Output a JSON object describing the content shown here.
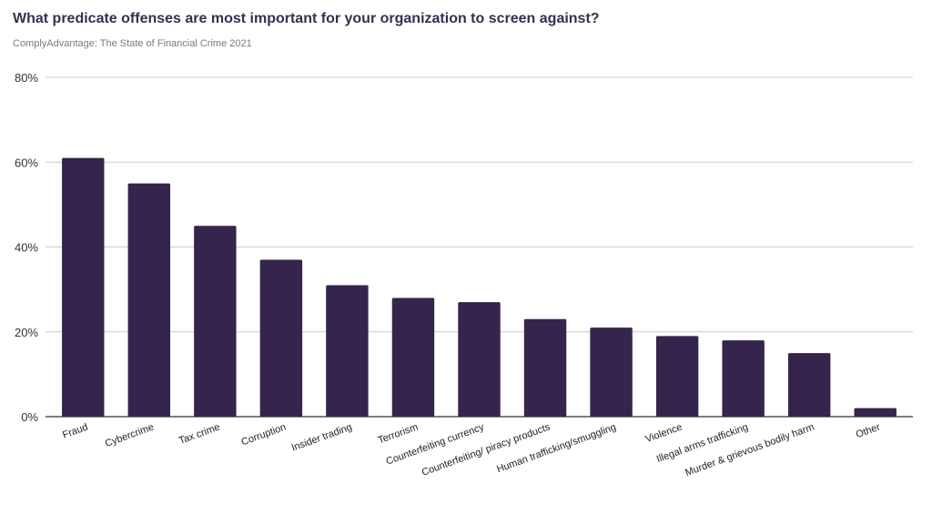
{
  "chart_data": {
    "type": "bar",
    "title": "What predicate offenses are most important for your organization to screen against?",
    "subtitle": "ComplyAdvantage: The State of Financial Crime 2021",
    "categories": [
      "Fraud",
      "Cybercrime",
      "Tax crime",
      "Corruption",
      "Insider trading",
      "Terrorism",
      "Counterfeiting currency",
      "Counterfeiting/ piracy products",
      "Human trafficking/smuggling",
      "Violence",
      "Illegal arms trafficking",
      "Murder & grievous bodily harm",
      "Other"
    ],
    "values": [
      61,
      55,
      45,
      37,
      31,
      28,
      27,
      23,
      21,
      19,
      18,
      15,
      2
    ],
    "ylim": [
      0,
      80
    ],
    "yticks": [
      0,
      20,
      40,
      60,
      80
    ],
    "ytick_labels": [
      "0%",
      "20%",
      "40%",
      "60%",
      "80%"
    ],
    "grid": true,
    "bar_color": "#35244c"
  }
}
